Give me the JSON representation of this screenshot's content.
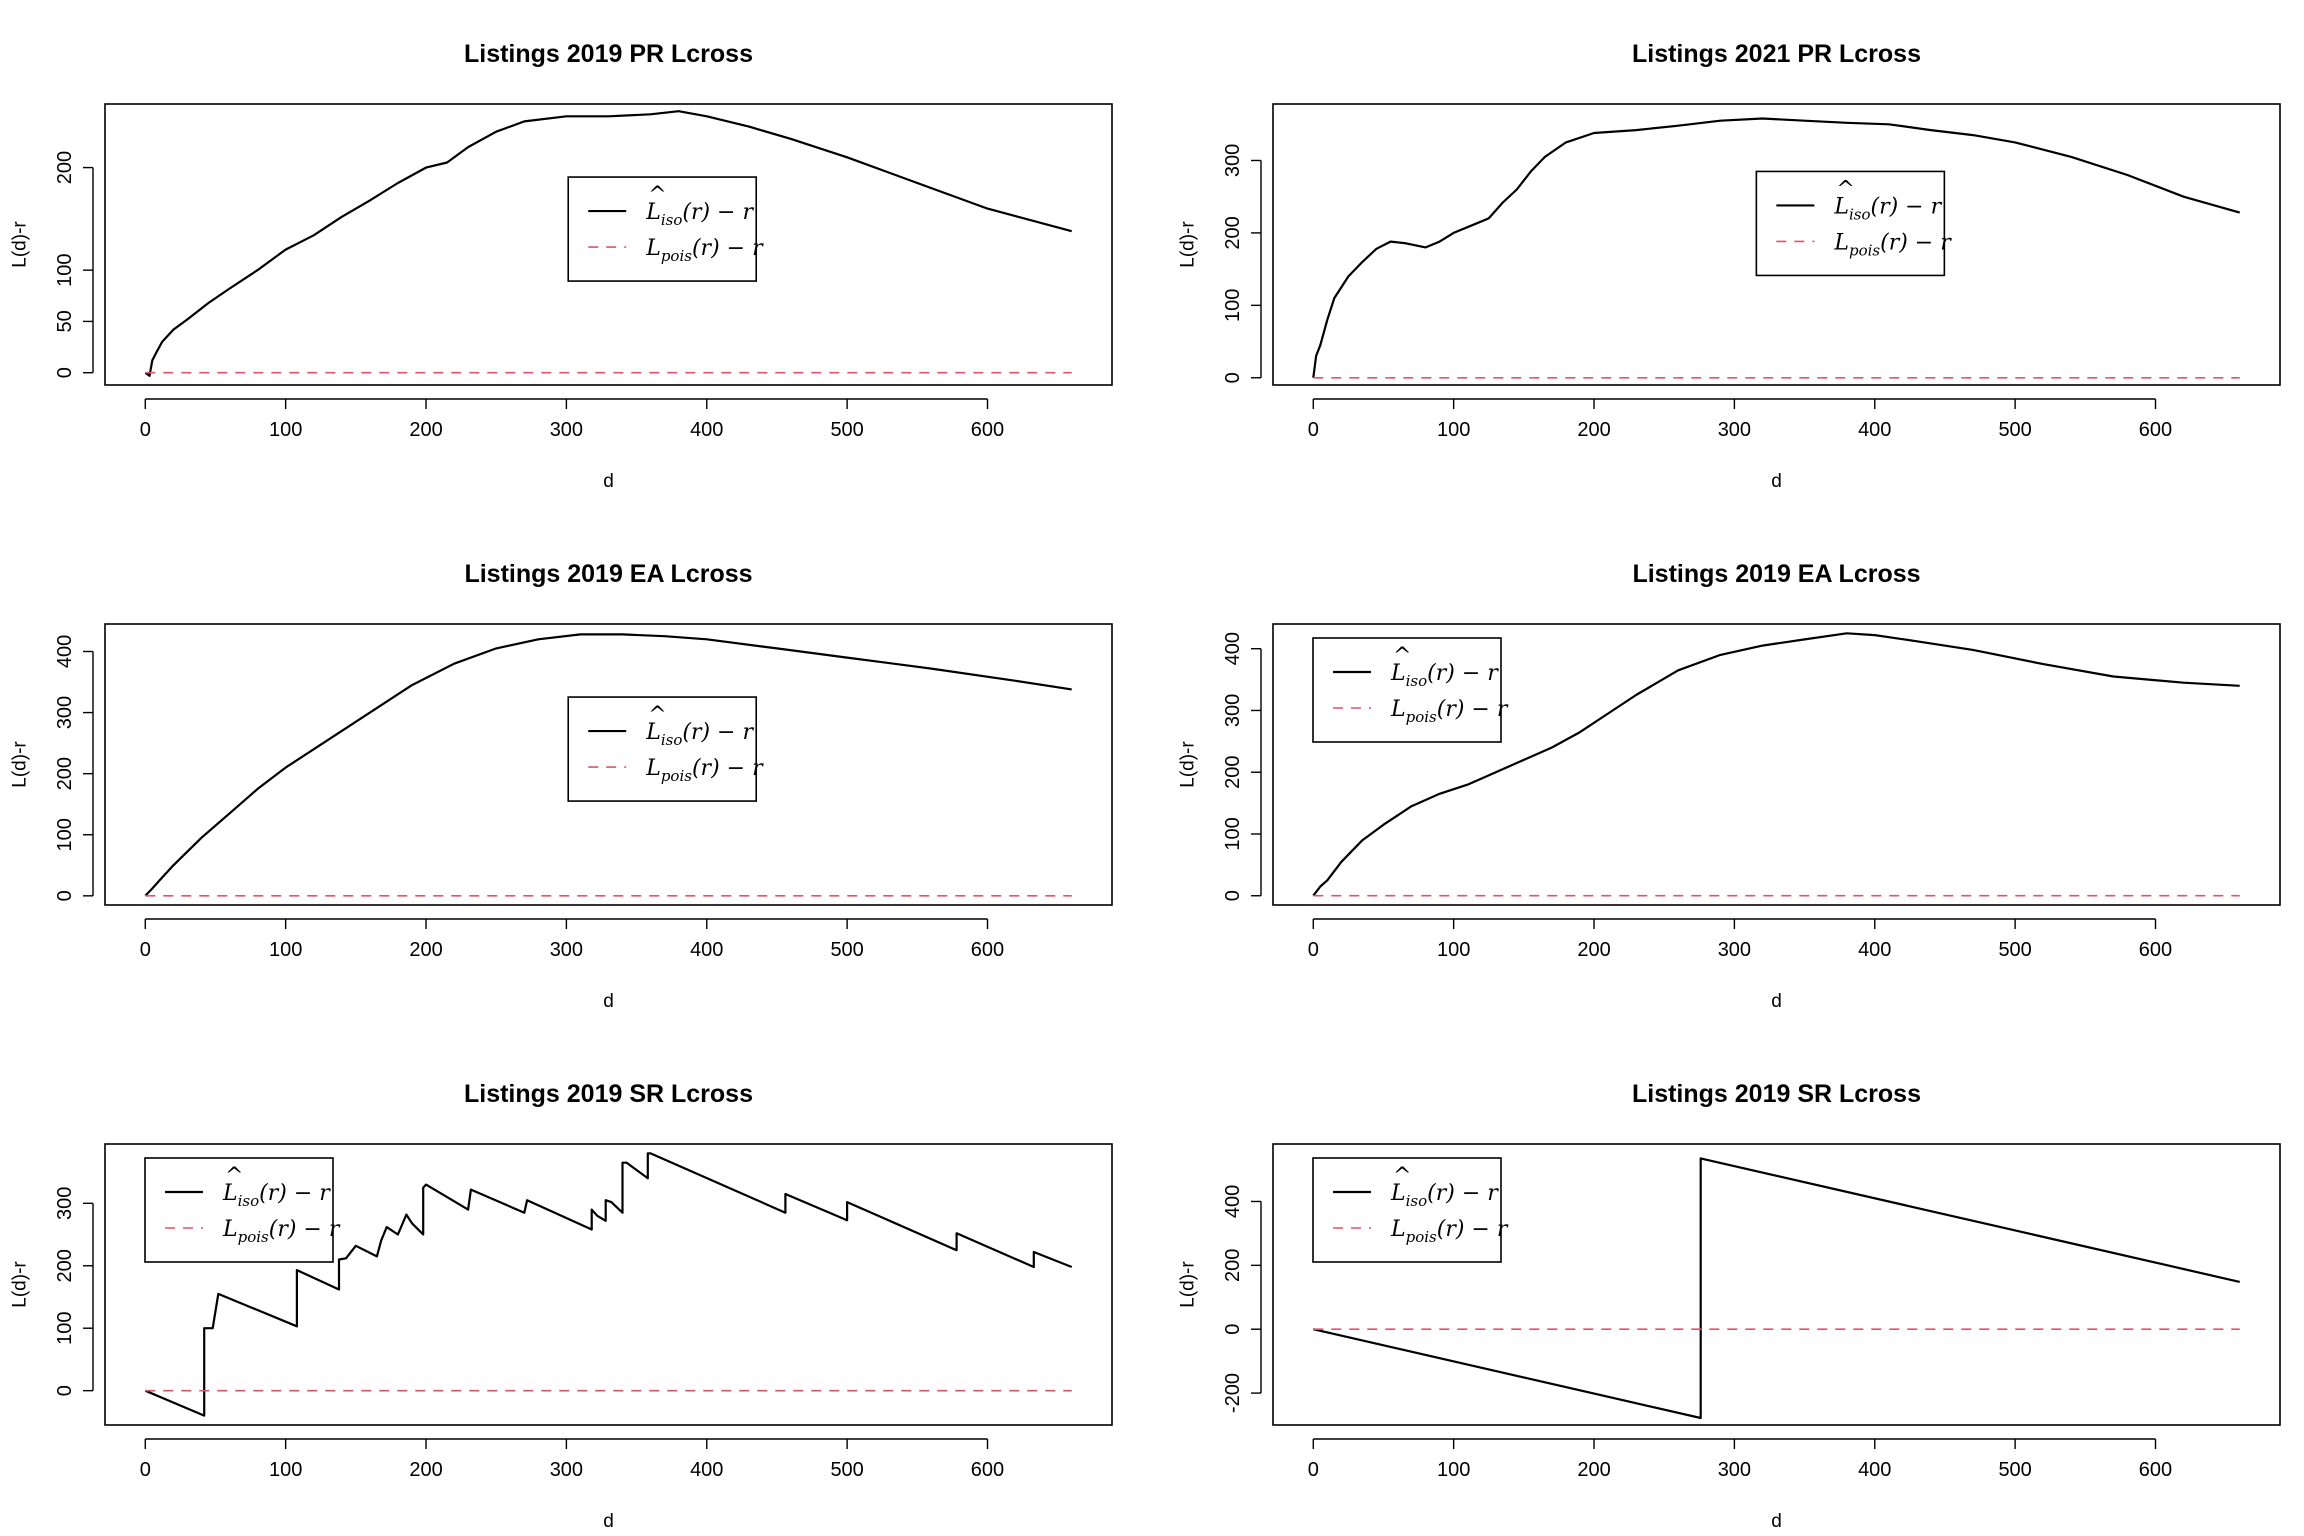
{
  "colors": {
    "observed": "#000000",
    "theoretical": "#DF536B"
  },
  "legend": {
    "observed": {
      "base": "L",
      "hat": "^",
      "sub": "iso",
      "rest": "(r) − r"
    },
    "theoretical": {
      "base": "L",
      "sub": "pois",
      "rest": "(r) − r"
    }
  },
  "chart_data": [
    {
      "type": "line",
      "title": "Listings 2019 PR Lcross",
      "xlabel": "d",
      "ylabel": "L(d)-r",
      "xlim": [
        0,
        660
      ],
      "ylim": [
        -12,
        262
      ],
      "xticks": [
        "0",
        "100",
        "200",
        "300",
        "400",
        "500",
        "600"
      ],
      "yticks": [
        "0",
        "50",
        "100",
        "200"
      ],
      "legend_position": "center",
      "series": [
        {
          "name": "L̂iso(r) − r",
          "style": "solid",
          "x": [
            0,
            3,
            5,
            8,
            12,
            20,
            30,
            45,
            60,
            80,
            100,
            120,
            140,
            160,
            180,
            200,
            215,
            230,
            250,
            270,
            300,
            330,
            360,
            380,
            400,
            430,
            460,
            500,
            550,
            600,
            660
          ],
          "y": [
            0,
            -3,
            12,
            20,
            30,
            42,
            52,
            68,
            82,
            100,
            120,
            134,
            152,
            168,
            185,
            200,
            205,
            220,
            235,
            245,
            250,
            250,
            252,
            255,
            250,
            240,
            228,
            210,
            185,
            160,
            138
          ]
        },
        {
          "name": "Lpois(r) − r",
          "style": "dashed",
          "x": [
            0,
            660
          ],
          "y": [
            0,
            0
          ]
        }
      ]
    },
    {
      "type": "line",
      "title": "Listings 2021 PR Lcross",
      "xlabel": "d",
      "ylabel": "L(d)-r",
      "xlim": [
        0,
        660
      ],
      "ylim": [
        -10,
        378
      ],
      "xticks": [
        "0",
        "100",
        "200",
        "300",
        "400",
        "500",
        "600"
      ],
      "yticks": [
        "0",
        "100",
        "200",
        "300"
      ],
      "legend_position": "center-right",
      "series": [
        {
          "name": "L̂iso(r) − r",
          "style": "solid",
          "x": [
            0,
            2,
            5,
            10,
            15,
            25,
            35,
            45,
            55,
            65,
            80,
            90,
            100,
            115,
            125,
            135,
            145,
            155,
            165,
            180,
            200,
            230,
            260,
            290,
            320,
            350,
            380,
            410,
            440,
            470,
            500,
            540,
            580,
            620,
            660
          ],
          "y": [
            0,
            30,
            45,
            80,
            110,
            140,
            160,
            178,
            188,
            186,
            180,
            188,
            200,
            212,
            220,
            242,
            260,
            285,
            305,
            325,
            338,
            342,
            348,
            355,
            358,
            355,
            352,
            350,
            342,
            335,
            325,
            305,
            280,
            250,
            228
          ]
        },
        {
          "name": "Lpois(r) − r",
          "style": "dashed",
          "x": [
            0,
            660
          ],
          "y": [
            0,
            0
          ]
        }
      ]
    },
    {
      "type": "line",
      "title": "Listings 2019 EA Lcross",
      "xlabel": "d",
      "ylabel": "L(d)-r",
      "xlim": [
        0,
        660
      ],
      "ylim": [
        -15,
        445
      ],
      "xticks": [
        "0",
        "100",
        "200",
        "300",
        "400",
        "500",
        "600"
      ],
      "yticks": [
        "0",
        "100",
        "200",
        "300",
        "400"
      ],
      "legend_position": "center",
      "series": [
        {
          "name": "L̂iso(r) − r",
          "style": "solid",
          "x": [
            0,
            5,
            10,
            20,
            40,
            60,
            80,
            100,
            130,
            160,
            190,
            220,
            250,
            280,
            310,
            340,
            370,
            400,
            450,
            500,
            560,
            620,
            660
          ],
          "y": [
            0,
            12,
            25,
            50,
            95,
            135,
            175,
            210,
            255,
            300,
            345,
            380,
            405,
            420,
            428,
            428,
            425,
            420,
            405,
            390,
            372,
            352,
            338
          ]
        },
        {
          "name": "Lpois(r) − r",
          "style": "dashed",
          "x": [
            0,
            660
          ],
          "y": [
            0,
            0
          ]
        }
      ]
    },
    {
      "type": "line",
      "title": "Listings 2019 EA Lcross",
      "xlabel": "d",
      "ylabel": "L(d)-r",
      "xlim": [
        0,
        660
      ],
      "ylim": [
        -15,
        440
      ],
      "xticks": [
        "0",
        "100",
        "200",
        "300",
        "400",
        "500",
        "600"
      ],
      "yticks": [
        "0",
        "100",
        "200",
        "300",
        "400"
      ],
      "legend_position": "top-left",
      "series": [
        {
          "name": "L̂iso(r) − r",
          "style": "solid",
          "x": [
            0,
            5,
            10,
            20,
            35,
            50,
            70,
            90,
            110,
            130,
            150,
            170,
            190,
            210,
            230,
            260,
            290,
            320,
            350,
            380,
            400,
            430,
            470,
            520,
            570,
            620,
            660
          ],
          "y": [
            0,
            15,
            25,
            55,
            90,
            115,
            145,
            165,
            180,
            200,
            220,
            240,
            265,
            295,
            325,
            365,
            390,
            405,
            415,
            425,
            422,
            412,
            398,
            375,
            355,
            345,
            340
          ]
        },
        {
          "name": "Lpois(r) − r",
          "style": "dashed",
          "x": [
            0,
            660
          ],
          "y": [
            0,
            0
          ]
        }
      ]
    },
    {
      "type": "line",
      "title": "Listings 2019 SR Lcross",
      "xlabel": "d",
      "ylabel": "L(d)-r",
      "xlim": [
        0,
        660
      ],
      "ylim": [
        -55,
        395
      ],
      "xticks": [
        "0",
        "100",
        "200",
        "300",
        "400",
        "500",
        "600"
      ],
      "yticks": [
        "0",
        "100",
        "200",
        "300"
      ],
      "legend_position": "top-left",
      "series": [
        {
          "name": "L̂iso(r) − r",
          "style": "solid",
          "x": [
            0,
            42,
            42,
            48,
            52,
            108,
            108,
            138,
            138,
            143,
            150,
            165,
            168,
            172,
            180,
            186,
            190,
            198,
            198,
            200,
            230,
            232,
            270,
            272,
            318,
            318,
            322,
            328,
            328,
            332,
            340,
            340,
            343,
            358,
            358,
            360,
            456,
            456,
            500,
            500,
            578,
            578,
            633,
            633,
            660
          ],
          "y": [
            0,
            -40,
            100,
            100,
            155,
            103,
            193,
            162,
            210,
            212,
            232,
            215,
            240,
            262,
            250,
            282,
            268,
            250,
            325,
            330,
            290,
            322,
            285,
            305,
            258,
            290,
            280,
            272,
            305,
            302,
            285,
            365,
            365,
            340,
            380,
            380,
            285,
            315,
            273,
            302,
            225,
            252,
            198,
            222,
            198
          ]
        },
        {
          "name": "Lpois(r) − r",
          "style": "dashed",
          "x": [
            0,
            660
          ],
          "y": [
            0,
            0
          ]
        }
      ]
    },
    {
      "type": "line",
      "title": "Listings 2019 SR Lcross",
      "xlabel": "d",
      "ylabel": "L(d)-r",
      "xlim": [
        0,
        660
      ],
      "ylim": [
        -300,
        580
      ],
      "xticks": [
        "0",
        "100",
        "200",
        "300",
        "400",
        "500",
        "600"
      ],
      "yticks": [
        "-200",
        "0",
        "200",
        "400"
      ],
      "legend_position": "top-left",
      "series": [
        {
          "name": "L̂iso(r) − r",
          "style": "solid",
          "x": [
            0,
            276,
            276,
            660
          ],
          "y": [
            0,
            -278,
            535,
            148
          ]
        },
        {
          "name": "Lpois(r) − r",
          "style": "dashed",
          "x": [
            0,
            660
          ],
          "y": [
            0,
            0
          ]
        }
      ]
    }
  ]
}
